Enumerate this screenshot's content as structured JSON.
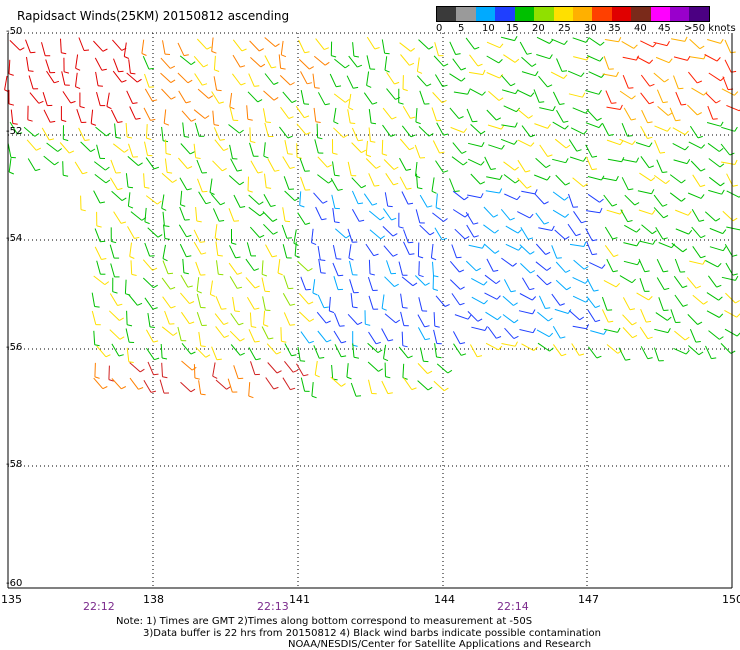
{
  "title": "Rapidsact Winds(25KM) 20150812 ascending",
  "legend": {
    "labels": [
      "0",
      "5",
      "10",
      "15",
      "20",
      "25",
      "30",
      "35",
      "40",
      "45",
      ">50 knots"
    ],
    "colors": [
      "#3a3a3a",
      "#9a9a9a",
      "#00aaff",
      "#1f3fff",
      "#00c000",
      "#90e000",
      "#ffe000",
      "#ffb000",
      "#ff4000",
      "#e00000",
      "#7a2a1a",
      "#ff00ff",
      "#9900cc",
      "#4b0082"
    ]
  },
  "axes": {
    "lon_ticks": [
      "135",
      "138",
      "141",
      "144",
      "147",
      "150"
    ],
    "lat_ticks": [
      "-50",
      "-52",
      "-54",
      "-56",
      "-58",
      "-60"
    ]
  },
  "times": [
    "22:12",
    "22:13",
    "22:14"
  ],
  "notes": [
    "Note: 1) Times are GMT 2)Times along bottom correspond to measurement at -50S",
    "3)Data buffer is 22 hrs from 20150812 4) Black wind barbs indicate possible contamination",
    "NOAA/NESDIS/Center for Satellite Applications and Research"
  ]
}
